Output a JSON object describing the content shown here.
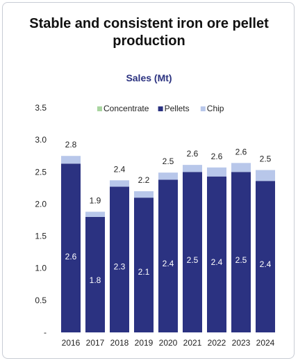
{
  "headline": "Stable and consistent iron ore pellet production",
  "chart_data": {
    "type": "bar",
    "stacked": true,
    "title": "Sales (Mt)",
    "categories": [
      "2016",
      "2017",
      "2018",
      "2019",
      "2020",
      "2021",
      "2022",
      "2023",
      "2024"
    ],
    "series": [
      {
        "name": "Concentrate",
        "color": "#a9d5a0",
        "values": [
          0,
          0,
          0,
          0,
          0,
          0,
          0,
          0,
          0
        ]
      },
      {
        "name": "Pellets",
        "color": "#2b3281",
        "values": [
          2.63,
          1.8,
          2.27,
          2.1,
          2.38,
          2.5,
          2.43,
          2.5,
          2.36
        ],
        "labels": [
          "2.6",
          "1.8",
          "2.3",
          "2.1",
          "2.4",
          "2.5",
          "2.4",
          "2.5",
          "2.4"
        ]
      },
      {
        "name": "Chip",
        "color": "#b8c7ea",
        "values": [
          0.12,
          0.08,
          0.1,
          0.1,
          0.11,
          0.11,
          0.14,
          0.14,
          0.17
        ]
      }
    ],
    "totals_labels": [
      "2.8",
      "1.9",
      "2.4",
      "2.2",
      "2.5",
      "2.6",
      "2.6",
      "2.6",
      "2.5"
    ],
    "y_ticks": [
      {
        "value": 0,
        "label": "-"
      },
      {
        "value": 0.5,
        "label": "0.5"
      },
      {
        "value": 1.0,
        "label": "1.0"
      },
      {
        "value": 1.5,
        "label": "1.5"
      },
      {
        "value": 2.0,
        "label": "2.0"
      },
      {
        "value": 2.5,
        "label": "2.5"
      },
      {
        "value": 3.0,
        "label": "3.0"
      },
      {
        "value": 3.5,
        "label": "3.5"
      }
    ],
    "ylim": [
      0,
      3.5
    ],
    "grid": false,
    "legend": "top"
  }
}
